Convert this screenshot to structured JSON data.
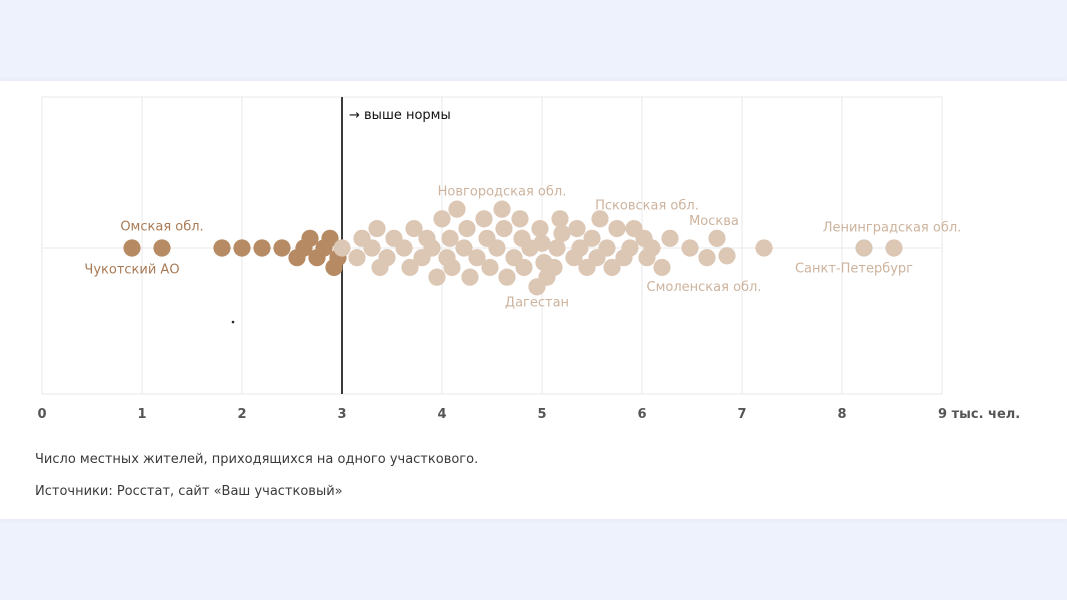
{
  "chart_data": {
    "type": "scatter",
    "subtype": "beeswarm",
    "x_tick_labels": [
      "0",
      "1",
      "2",
      "3",
      "4",
      "5",
      "6",
      "7",
      "8",
      "9 тыс. чел."
    ],
    "xlim": [
      0,
      9
    ],
    "grid": true,
    "threshold": {
      "x": 3,
      "label": "→ выше нормы"
    },
    "colors": {
      "below": "#b68a62",
      "above": "#dcc6b4",
      "above_label": "#cdb39d",
      "below_label": "#a87a55",
      "line": "#3a3a3a",
      "grid": "#e8e8e8"
    },
    "series": [
      {
        "group": "below",
        "points": [
          {
            "x": 0.9,
            "o": 0
          },
          {
            "x": 1.2,
            "o": 0
          },
          {
            "x": 1.8,
            "o": 0
          },
          {
            "x": 2.0,
            "o": 0
          },
          {
            "x": 2.2,
            "o": 0
          },
          {
            "x": 2.4,
            "o": 0
          },
          {
            "x": 2.55,
            "o": 1
          },
          {
            "x": 2.62,
            "o": 0
          },
          {
            "x": 2.68,
            "o": -1
          },
          {
            "x": 2.75,
            "o": 1
          },
          {
            "x": 2.82,
            "o": 0
          },
          {
            "x": 2.88,
            "o": -1
          },
          {
            "x": 2.92,
            "o": 2
          },
          {
            "x": 2.96,
            "o": 1
          }
        ]
      },
      {
        "group": "above",
        "points": [
          {
            "x": 3.0,
            "o": 0
          },
          {
            "x": 3.15,
            "o": 1
          },
          {
            "x": 3.2,
            "o": -1
          },
          {
            "x": 3.3,
            "o": 0
          },
          {
            "x": 3.35,
            "o": -2
          },
          {
            "x": 3.38,
            "o": 2
          },
          {
            "x": 3.45,
            "o": 1
          },
          {
            "x": 3.52,
            "o": -1
          },
          {
            "x": 3.62,
            "o": 0
          },
          {
            "x": 3.68,
            "o": 2
          },
          {
            "x": 3.72,
            "o": -2
          },
          {
            "x": 3.8,
            "o": 1
          },
          {
            "x": 3.85,
            "o": -1
          },
          {
            "x": 3.9,
            "o": 0
          },
          {
            "x": 3.95,
            "o": 3
          },
          {
            "x": 4.0,
            "o": -3
          },
          {
            "x": 4.05,
            "o": 1
          },
          {
            "x": 4.08,
            "o": -1
          },
          {
            "x": 4.1,
            "o": 2
          },
          {
            "x": 4.15,
            "o": -4
          },
          {
            "x": 4.22,
            "o": 0
          },
          {
            "x": 4.25,
            "o": -2
          },
          {
            "x": 4.28,
            "o": 3
          },
          {
            "x": 4.35,
            "o": 1
          },
          {
            "x": 4.42,
            "o": -3
          },
          {
            "x": 4.45,
            "o": -1
          },
          {
            "x": 4.48,
            "o": 2
          },
          {
            "x": 4.55,
            "o": 0
          },
          {
            "x": 4.6,
            "o": -4
          },
          {
            "x": 4.62,
            "o": -2
          },
          {
            "x": 4.65,
            "o": 3
          },
          {
            "x": 4.72,
            "o": 1
          },
          {
            "x": 4.78,
            "o": -3
          },
          {
            "x": 4.8,
            "o": -1
          },
          {
            "x": 4.82,
            "o": 2
          },
          {
            "x": 4.88,
            "o": 0
          },
          {
            "x": 4.95,
            "o": 4
          },
          {
            "x": 4.98,
            "o": -2
          },
          {
            "x": 5.0,
            "o": -0.5
          },
          {
            "x": 5.02,
            "o": 1.5
          },
          {
            "x": 5.05,
            "o": 3
          },
          {
            "x": 5.12,
            "o": 2
          },
          {
            "x": 5.15,
            "o": 0
          },
          {
            "x": 5.18,
            "o": -3
          },
          {
            "x": 5.2,
            "o": -1.5
          },
          {
            "x": 5.32,
            "o": 1
          },
          {
            "x": 5.35,
            "o": -2
          },
          {
            "x": 5.38,
            "o": 0
          },
          {
            "x": 5.45,
            "o": 2
          },
          {
            "x": 5.5,
            "o": -1
          },
          {
            "x": 5.55,
            "o": 1
          },
          {
            "x": 5.58,
            "o": -3
          },
          {
            "x": 5.65,
            "o": 0
          },
          {
            "x": 5.7,
            "o": 2
          },
          {
            "x": 5.75,
            "o": -2
          },
          {
            "x": 5.82,
            "o": 1
          },
          {
            "x": 5.88,
            "o": 0
          },
          {
            "x": 5.92,
            "o": -2
          },
          {
            "x": 6.02,
            "o": -1
          },
          {
            "x": 6.05,
            "o": 1
          },
          {
            "x": 6.1,
            "o": 0
          },
          {
            "x": 6.2,
            "o": 2
          },
          {
            "x": 6.28,
            "o": -1
          },
          {
            "x": 6.48,
            "o": 0
          },
          {
            "x": 6.65,
            "o": 1
          },
          {
            "x": 6.75,
            "o": -1
          },
          {
            "x": 6.85,
            "o": 0.8
          },
          {
            "x": 7.22,
            "o": 0
          },
          {
            "x": 8.22,
            "o": 0
          },
          {
            "x": 8.52,
            "o": 0
          }
        ]
      }
    ],
    "labels": [
      {
        "text": "Омская обл.",
        "x": 1.2,
        "o": -2.2,
        "group": "below"
      },
      {
        "text": "Чукотский АО",
        "x": 0.9,
        "o": 2.2,
        "group": "below"
      },
      {
        "text": "Новгородская обл.",
        "x": 4.6,
        "o": -5.8,
        "group": "above"
      },
      {
        "text": "Псковская обл.",
        "x": 6.05,
        "o": -4.4,
        "group": "above"
      },
      {
        "text": "Москва",
        "x": 6.72,
        "o": -2.8,
        "group": "above"
      },
      {
        "text": "Ленинградская обл.",
        "x": 8.5,
        "o": -2.1,
        "group": "above"
      },
      {
        "text": "Санкт-Петербург",
        "x": 8.12,
        "o": 2.1,
        "group": "above"
      },
      {
        "text": "Смоленская обл.",
        "x": 6.62,
        "o": 4.0,
        "group": "above"
      },
      {
        "text": "Дагестан",
        "x": 4.95,
        "o": 5.6,
        "group": "above"
      }
    ]
  },
  "caption": {
    "note": "Число местных жителей, приходящихся на одного участкового.",
    "source": "Источники: Росстат, сайт «Ваш участковый»"
  }
}
